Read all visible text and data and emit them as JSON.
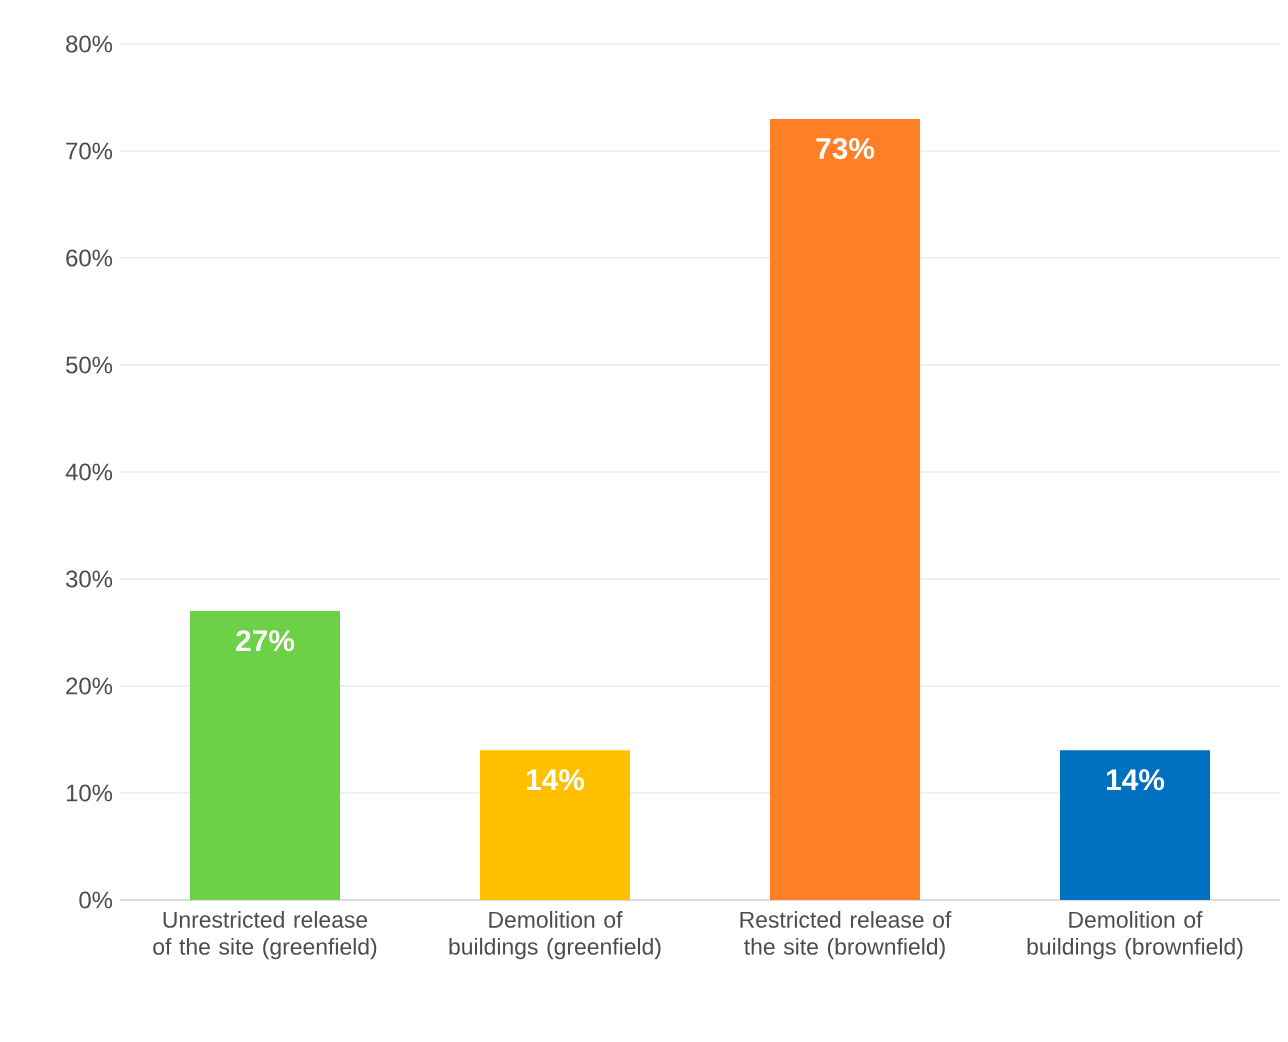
{
  "chart_data": {
    "type": "bar",
    "categories": [
      "Unrestricted release of the site (greenfield)",
      "Demolition of buildings (greenfield)",
      "Restricted release of the site (brownfield)",
      "Demolition of buildings (brownfield)"
    ],
    "values": [
      27,
      14,
      73,
      14
    ],
    "colors": [
      "#6dd147",
      "#ffc000",
      "#ff7f27",
      "#0070c0"
    ],
    "value_labels": [
      "27%",
      "14%",
      "73%",
      "14%"
    ],
    "ylim": [
      0,
      80
    ],
    "yticks": [
      {
        "value": 0,
        "label": "0%"
      },
      {
        "value": 10,
        "label": "10%"
      },
      {
        "value": 20,
        "label": "20%"
      },
      {
        "value": 30,
        "label": "30%"
      },
      {
        "value": 40,
        "label": "40%"
      },
      {
        "value": 50,
        "label": "50%"
      },
      {
        "value": 60,
        "label": "60%"
      },
      {
        "value": 70,
        "label": "70%"
      },
      {
        "value": 80,
        "label": "80%"
      }
    ],
    "grid": "y"
  }
}
